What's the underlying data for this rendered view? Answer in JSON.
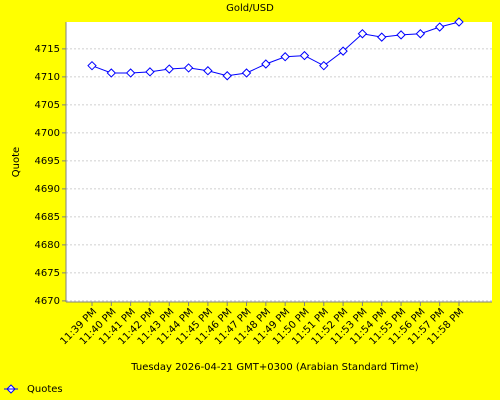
{
  "chart_data": {
    "type": "line",
    "title": "Gold/USD",
    "x_label": "Tuesday 2026-04-21 GMT+0300 (Arabian Standard Time)",
    "y_label": "Quote",
    "categories": [
      "11:39 PM",
      "11:40 PM",
      "11:41 PM",
      "11:42 PM",
      "11:43 PM",
      "11:44 PM",
      "11:45 PM",
      "11:46 PM",
      "11:47 PM",
      "11:48 PM",
      "11:49 PM",
      "11:50 PM",
      "11:51 PM",
      "11:52 PM",
      "11:53 PM",
      "11:54 PM",
      "11:55 PM",
      "11:56 PM",
      "11:57 PM",
      "11:58 PM"
    ],
    "series": [
      {
        "name": "Quotes",
        "color": "#0000ff",
        "values": [
          4712.0,
          4710.7,
          4710.7,
          4710.9,
          4711.4,
          4711.6,
          4711.1,
          4710.2,
          4710.7,
          4712.3,
          4713.6,
          4713.8,
          4712.0,
          4714.6,
          4717.7,
          4717.1,
          4717.5,
          4717.7,
          4718.9,
          4719.8
        ]
      }
    ],
    "ylim": [
      4669.8,
      4719.8
    ],
    "yticks": [
      4670,
      4675,
      4680,
      4685,
      4690,
      4695,
      4700,
      4705,
      4710,
      4715
    ],
    "grid": true,
    "legend": "bottom-left"
  }
}
